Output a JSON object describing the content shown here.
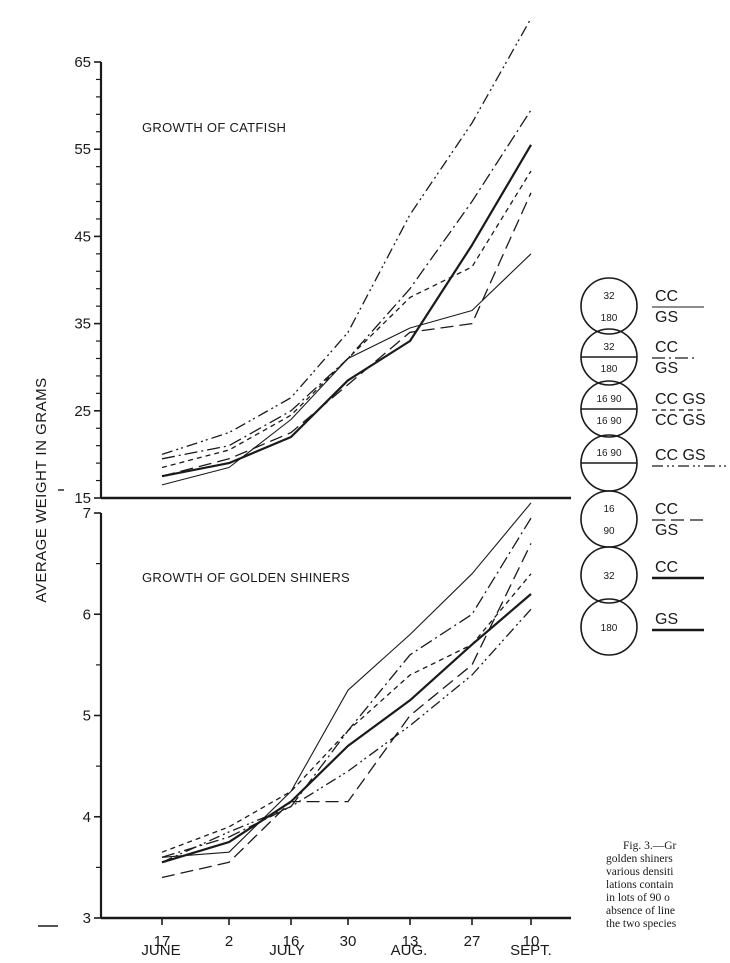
{
  "figure": {
    "ylabel": "AVERAGE WEIGHT IN GRAMS",
    "x_day_labels": [
      "17",
      "2",
      "16",
      "30",
      "13",
      "27",
      "10"
    ],
    "x_month_labels": [
      "JUNE",
      "JULY",
      "AUG.",
      "SEPT."
    ],
    "caption_lines": [
      "Fig. 3.—Gr",
      "golden shiners",
      "various densiti",
      "lations contain",
      "in lots of 90 o",
      "absence of line",
      "the two species"
    ]
  },
  "chart_data": [
    {
      "type": "line",
      "title": "GROWTH OF CATFISH",
      "ylabel": "AVERAGE WEIGHT IN GRAMS",
      "categories": [
        "17 June",
        "2 July",
        "16 July",
        "30 July",
        "13 Aug.",
        "27 Aug.",
        "10 Sept."
      ],
      "yticks": [
        15,
        25,
        35,
        45,
        55,
        65
      ],
      "ylim": [
        15,
        65
      ],
      "series": [
        {
          "style": "solid",
          "values": [
            17.5,
            19,
            22,
            28.5,
            33,
            44,
            55.5
          ]
        },
        {
          "style": "thin-solid",
          "values": [
            16.5,
            18.5,
            24,
            31,
            34.5,
            36.5,
            43
          ]
        },
        {
          "style": "long-dash",
          "values": [
            17.5,
            19.5,
            22.5,
            28,
            34,
            35,
            50
          ]
        },
        {
          "style": "dash-dot",
          "values": [
            19.5,
            21,
            25,
            31,
            39,
            49,
            59.5
          ]
        },
        {
          "style": "short-dash",
          "values": [
            18.5,
            20.5,
            24.5,
            31,
            38,
            41.5,
            52.5
          ]
        },
        {
          "style": "dash-dot-dot",
          "values": [
            20,
            22.5,
            26.5,
            34,
            47.5,
            58,
            70
          ]
        }
      ]
    },
    {
      "type": "line",
      "title": "GROWTH OF GOLDEN SHINERS",
      "ylabel": "AVERAGE WEIGHT IN GRAMS",
      "categories": [
        "17 June",
        "2 July",
        "16 July",
        "30 July",
        "13 Aug.",
        "27 Aug.",
        "10 Sept."
      ],
      "yticks": [
        3,
        4,
        5,
        6,
        7
      ],
      "ylim": [
        3,
        7
      ],
      "series": [
        {
          "style": "solid",
          "values": [
            3.55,
            3.75,
            4.15,
            4.7,
            5.15,
            5.7,
            6.2
          ]
        },
        {
          "style": "thin-solid",
          "values": [
            3.6,
            3.65,
            4.25,
            5.25,
            5.8,
            6.4,
            7.1
          ]
        },
        {
          "style": "long-dash",
          "values": [
            3.4,
            3.55,
            4.15,
            4.15,
            5.0,
            5.5,
            6.7
          ]
        },
        {
          "style": "dash-dot",
          "values": [
            3.6,
            3.8,
            4.1,
            4.85,
            5.6,
            6.0,
            6.95
          ]
        },
        {
          "style": "short-dash",
          "values": [
            3.65,
            3.9,
            4.25,
            4.85,
            5.4,
            5.7,
            6.4
          ]
        },
        {
          "style": "dash-dot-dot",
          "values": [
            3.55,
            3.85,
            4.1,
            4.45,
            4.9,
            5.4,
            6.05
          ]
        }
      ]
    }
  ],
  "legend": [
    {
      "top": "32",
      "bottom": "180",
      "divided": false,
      "code_top": "CC",
      "code_bottom": "GS",
      "style": "thin-solid"
    },
    {
      "top": "32",
      "bottom": "180",
      "divided": true,
      "code_top": "CC",
      "code_bottom": "GS",
      "style": "dash-dot"
    },
    {
      "top": "16 90",
      "bottom": "16 90",
      "divided": true,
      "code_top": "CC GS",
      "code_bottom": "CC GS",
      "style": "short-dash"
    },
    {
      "top": "16 90",
      "bottom": "",
      "divided": true,
      "code_top": "CC GS",
      "code_bottom": "",
      "style": "dash-dot-dot"
    },
    {
      "top": "16",
      "bottom": "90",
      "divided": false,
      "code_top": "CC",
      "code_bottom": "GS",
      "style": "long-dash"
    },
    {
      "top": "32",
      "bottom": "",
      "divided": false,
      "code_top": "CC",
      "code_bottom": "",
      "style": "solid"
    },
    {
      "top": "180",
      "bottom": "",
      "divided": false,
      "code_top": "GS",
      "code_bottom": "",
      "style": "solid"
    }
  ]
}
